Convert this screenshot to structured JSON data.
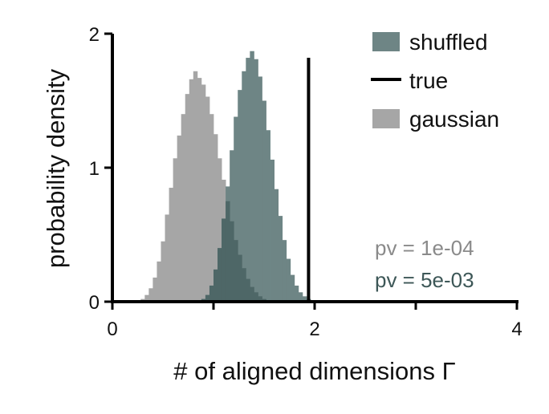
{
  "chart_data": {
    "type": "histogram",
    "xlabel": "# of aligned dimensions Γ",
    "ylabel": "probability density",
    "xlim": [
      0,
      4
    ],
    "ylim": [
      0,
      2
    ],
    "xticks": [
      0,
      1,
      2,
      3,
      4
    ],
    "xtick_labels": [
      "0",
      "",
      "2",
      "",
      "4"
    ],
    "yticks": [
      0,
      1,
      2
    ],
    "ytick_labels": [
      "0",
      "1",
      "2"
    ],
    "grid": false,
    "legend_position": "top-right",
    "bin_width": 0.04,
    "series": [
      {
        "name": "gaussian",
        "kind": "histogram",
        "color": "#a6a6a6",
        "bin_starts": [
          0.28,
          0.32,
          0.36,
          0.4,
          0.44,
          0.48,
          0.52,
          0.56,
          0.6,
          0.64,
          0.68,
          0.72,
          0.76,
          0.8,
          0.84,
          0.88,
          0.92,
          0.96,
          1.0,
          1.04,
          1.08,
          1.12,
          1.16,
          1.2,
          1.24,
          1.28,
          1.32,
          1.36,
          1.4,
          1.44,
          1.48,
          1.52,
          1.56
        ],
        "densities": [
          0.02,
          0.05,
          0.1,
          0.18,
          0.3,
          0.45,
          0.65,
          0.85,
          1.07,
          1.24,
          1.4,
          1.55,
          1.66,
          1.72,
          1.67,
          1.62,
          1.53,
          1.4,
          1.25,
          1.07,
          0.91,
          0.75,
          0.6,
          0.46,
          0.35,
          0.25,
          0.17,
          0.11,
          0.07,
          0.04,
          0.02,
          0.01,
          0.005
        ]
      },
      {
        "name": "shuffled",
        "kind": "histogram",
        "color": "#6e8585",
        "bin_starts": [
          0.88,
          0.92,
          0.96,
          1.0,
          1.04,
          1.08,
          1.12,
          1.16,
          1.2,
          1.24,
          1.28,
          1.32,
          1.36,
          1.4,
          1.44,
          1.48,
          1.52,
          1.56,
          1.6,
          1.64,
          1.68,
          1.72,
          1.76,
          1.8,
          1.84,
          1.88,
          1.92,
          1.96,
          2.0
        ],
        "densities": [
          0.02,
          0.05,
          0.12,
          0.24,
          0.4,
          0.62,
          0.86,
          1.13,
          1.38,
          1.58,
          1.72,
          1.82,
          1.87,
          1.81,
          1.68,
          1.5,
          1.28,
          1.06,
          0.84,
          0.64,
          0.46,
          0.32,
          0.2,
          0.12,
          0.07,
          0.04,
          0.02,
          0.01,
          0.005
        ]
      },
      {
        "name": "true",
        "kind": "vline",
        "color": "#000000",
        "x": 1.94,
        "height": 1.82
      }
    ],
    "overlap_color": "#4e6767",
    "legend": [
      {
        "label": "shuffled",
        "kind": "patch",
        "color": "#6e8585"
      },
      {
        "label": "true",
        "kind": "line",
        "color": "#000000"
      },
      {
        "label": "gaussian",
        "kind": "patch",
        "color": "#a6a6a6"
      }
    ],
    "annotations": [
      {
        "text": "pv = 1e-04",
        "color": "#8a8a8a"
      },
      {
        "text": "pv = 5e-03",
        "color": "#3d5757"
      }
    ]
  }
}
